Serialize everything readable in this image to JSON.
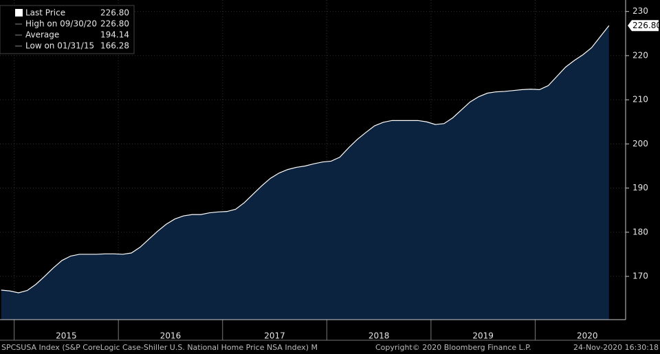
{
  "chart_data": {
    "type": "area",
    "title": "SPCSUSA Index (S&P CoreLogic Case-Shiller U.S. National Home Price NSA Index)  M",
    "copyright": "Copyright© 2020 Bloomberg Finance L.P.",
    "timestamp": "24-Nov-2020 16:30:18",
    "legend": [
      {
        "label": "Last Price",
        "value": "226.80"
      },
      {
        "label": "High on 09/30/20",
        "value": "226.80"
      },
      {
        "label": "Average",
        "value": "194.14"
      },
      {
        "label": "Low on 01/31/15",
        "value": "166.28"
      }
    ],
    "categories": [
      null,
      null,
      null,
      null,
      null,
      null,
      null,
      null,
      "2015",
      null,
      null,
      null,
      null,
      null,
      null,
      null,
      null,
      null,
      null,
      null,
      "2016",
      null,
      null,
      null,
      null,
      null,
      null,
      null,
      null,
      null,
      null,
      null,
      "2017",
      null,
      null,
      null,
      null,
      null,
      null,
      null,
      null,
      null,
      null,
      null,
      "2018",
      null,
      null,
      null,
      null,
      null,
      null,
      null,
      null,
      null,
      null,
      null,
      "2019",
      null,
      null,
      null,
      null,
      null,
      null,
      null,
      null,
      null,
      null,
      null,
      "2020",
      null,
      null
    ],
    "values": [
      166.9,
      166.7,
      166.28,
      166.8,
      168.2,
      170.0,
      171.9,
      173.6,
      174.6,
      175.0,
      175.0,
      175.0,
      175.1,
      175.1,
      175.0,
      175.3,
      176.6,
      178.4,
      180.2,
      181.8,
      183.0,
      183.7,
      184.0,
      184.0,
      184.4,
      184.6,
      184.7,
      185.2,
      186.7,
      188.6,
      190.5,
      192.2,
      193.4,
      194.2,
      194.7,
      195.0,
      195.5,
      195.9,
      196.1,
      197.0,
      199.1,
      201.0,
      202.6,
      204.1,
      204.9,
      205.3,
      205.3,
      205.3,
      205.3,
      205.0,
      204.4,
      204.6,
      205.9,
      207.7,
      209.5,
      210.7,
      211.5,
      211.8,
      211.9,
      212.1,
      212.3,
      212.4,
      212.3,
      213.2,
      215.3,
      217.4,
      218.9,
      220.2,
      221.8,
      224.3,
      226.8
    ],
    "color": "#0c2340",
    "line_color": "#ffffff",
    "ylim": [
      160.2,
      232.6
    ],
    "yticks": [
      170,
      180,
      190,
      200,
      210,
      220,
      230
    ],
    "grid": true
  }
}
